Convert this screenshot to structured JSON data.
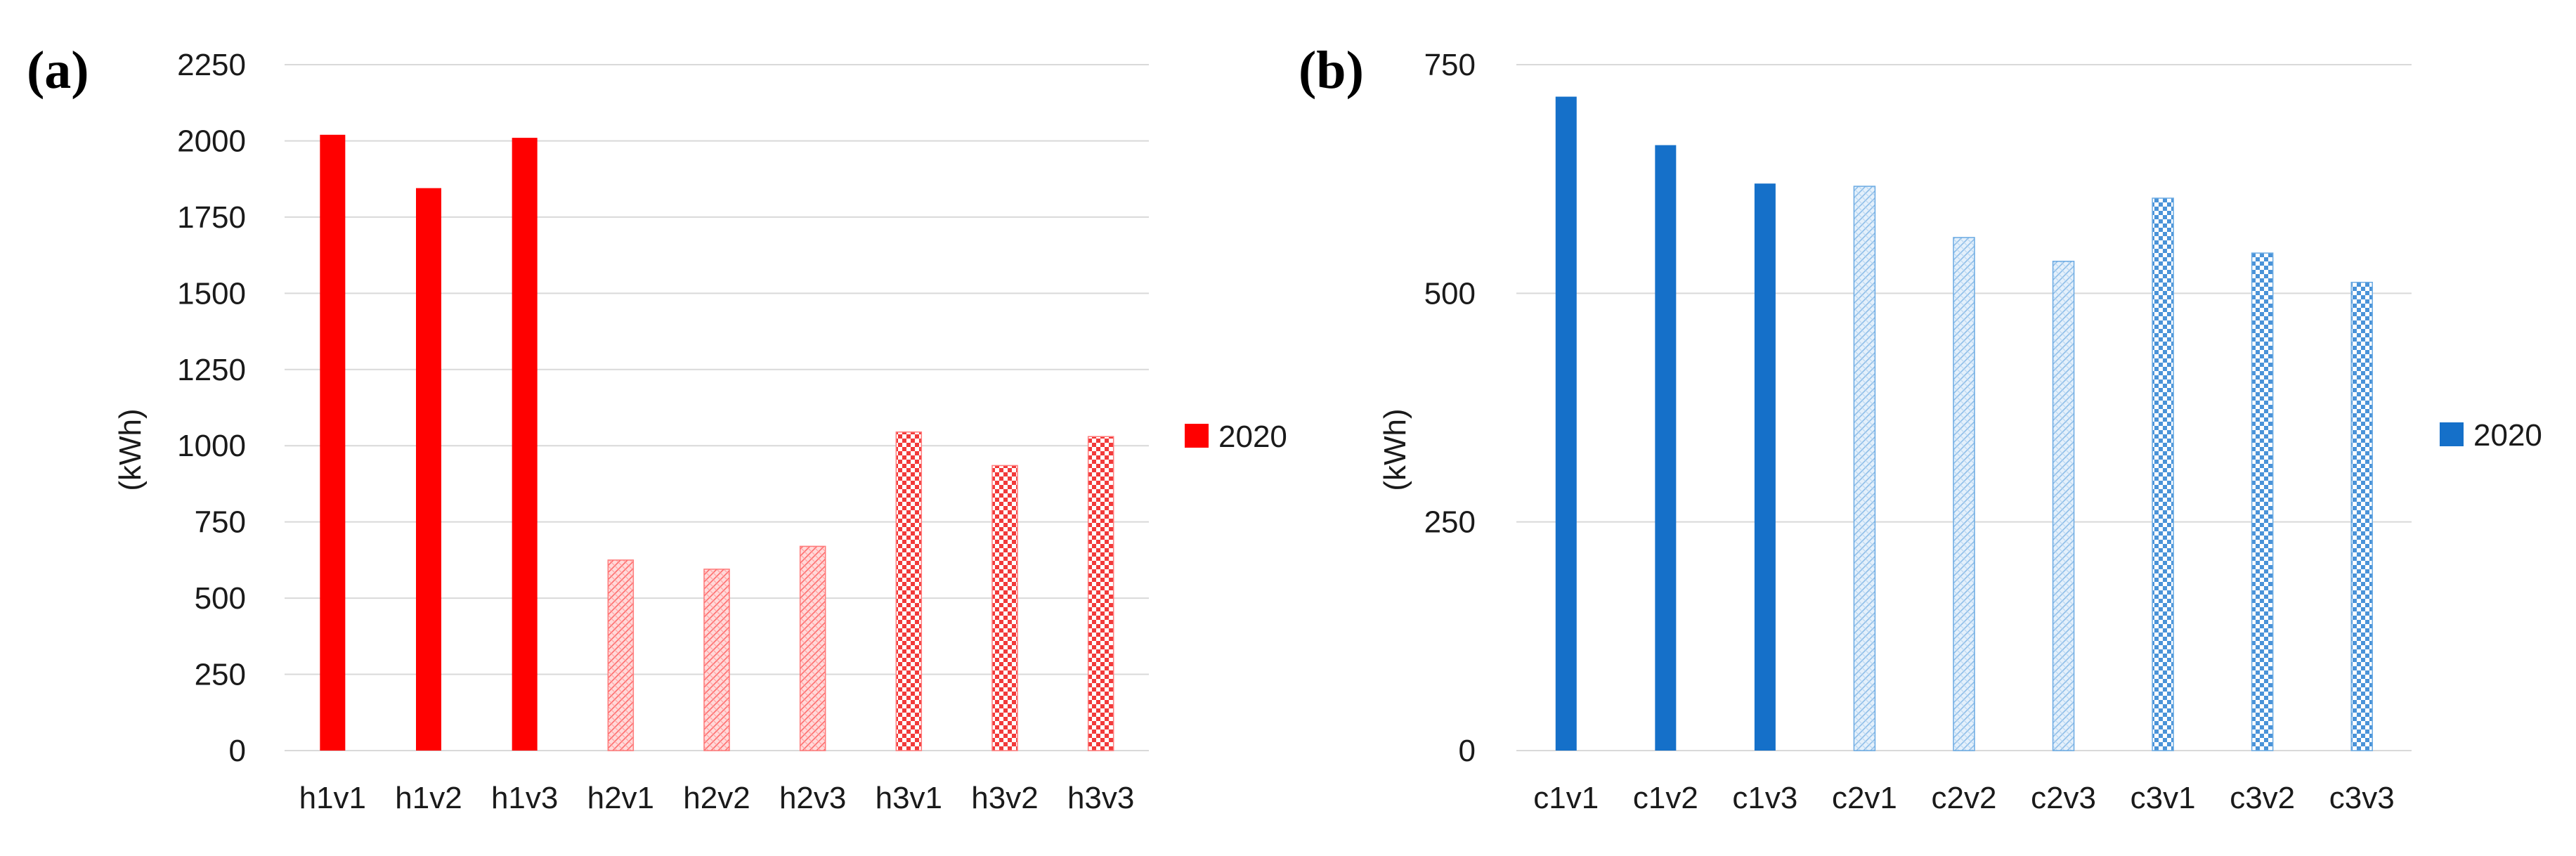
{
  "chart_data": [
    {
      "panel": "(a)",
      "type": "bar",
      "title": "",
      "xlabel": "",
      "ylabel": "(kWh)",
      "ylim": [
        0,
        2250
      ],
      "yticks": [
        0,
        250,
        500,
        750,
        1000,
        1250,
        1500,
        1750,
        2000,
        2250
      ],
      "grid": true,
      "legend": "right",
      "categories": [
        "h1v1",
        "h1v2",
        "h1v3",
        "h2v1",
        "h2v2",
        "h2v3",
        "h3v1",
        "h3v2",
        "h3v3"
      ],
      "series": [
        {
          "name": "2020",
          "values": [
            2020,
            1845,
            2010,
            625,
            595,
            670,
            1045,
            935,
            1030
          ]
        }
      ],
      "fills": [
        "solid",
        "solid",
        "solid",
        "light",
        "light",
        "light",
        "medium",
        "medium",
        "medium"
      ],
      "color": "#ff0000"
    },
    {
      "panel": "(b)",
      "type": "bar",
      "title": "",
      "xlabel": "",
      "ylabel": "(kWh)",
      "ylim": [
        0,
        750
      ],
      "yticks": [
        0,
        250,
        500,
        750
      ],
      "grid": true,
      "legend": "right",
      "categories": [
        "c1v1",
        "c1v2",
        "c1v3",
        "c2v1",
        "c2v2",
        "c2v3",
        "c3v1",
        "c3v2",
        "c3v3"
      ],
      "series": [
        {
          "name": "2020",
          "values": [
            715,
            662,
            620,
            617,
            561,
            535,
            604,
            544,
            512
          ]
        }
      ],
      "fills": [
        "solid",
        "solid",
        "solid",
        "light",
        "light",
        "light",
        "medium",
        "medium",
        "medium"
      ],
      "color": "#1570c9"
    }
  ]
}
